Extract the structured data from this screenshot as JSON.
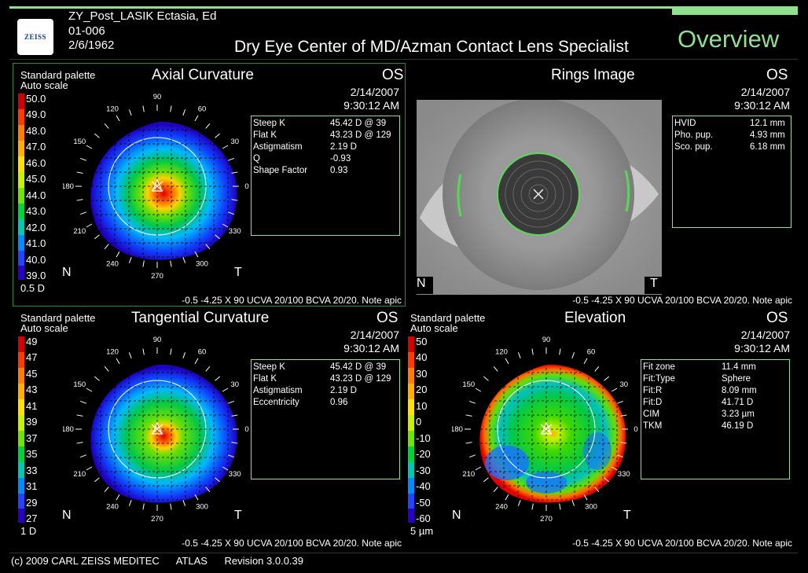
{
  "header": {
    "patient_name": "ZY_Post_LASIK Ectasia, Ed",
    "patient_id": "01-006",
    "dob": "2/6/1962",
    "logo": "ZEISS",
    "title": "Dry Eye Center of MD/Azman Contact Lens Specialist",
    "view": "Overview"
  },
  "axial": {
    "palette": "Standard palette",
    "scale_mode": "Auto scale",
    "title": "Axial Curvature",
    "eye": "OS",
    "date": "2/14/2007",
    "time": "9:30:12 AM",
    "step": "0.5 D",
    "scale": [
      "50.0",
      "49.0",
      "48.0",
      "47.0",
      "46.0",
      "45.0",
      "44.0",
      "43.0",
      "42.0",
      "41.0",
      "40.0",
      "39.0"
    ],
    "info": [
      {
        "k": "Steep K",
        "v": "45.42 D @ 39"
      },
      {
        "k": "Flat K",
        "v": "43.23 D @ 129"
      },
      {
        "k": "Astigmatism",
        "v": "2.19 D"
      },
      {
        "k": "Q",
        "v": "-0.93"
      },
      {
        "k": "Shape Factor",
        "v": "0.93"
      }
    ],
    "rx": "-0.5 -4.25 X 90 UCVA 20/100 BCVA 20/20.  Note apic",
    "nasal": "N",
    "temporal": "T"
  },
  "rings": {
    "title": "Rings Image",
    "eye": "OS",
    "date": "2/14/2007",
    "time": "9:30:12 AM",
    "info": [
      {
        "k": "HVID",
        "v": "12.1 mm"
      },
      {
        "k": "Pho. pup.",
        "v": "4.93 mm"
      },
      {
        "k": "Sco. pup.",
        "v": "6.18 mm"
      }
    ],
    "rx": "-0.5 -4.25 X 90 UCVA 20/100 BCVA 20/20.  Note apic",
    "nasal": "N",
    "temporal": "T"
  },
  "tangential": {
    "palette": "Standard palette",
    "scale_mode": "Auto scale",
    "title": "Tangential Curvature",
    "eye": "OS",
    "date": "2/14/2007",
    "time": "9:30:12 AM",
    "step": "1 D",
    "scale": [
      "49",
      "47",
      "45",
      "43",
      "41",
      "39",
      "37",
      "35",
      "33",
      "31",
      "29",
      "27"
    ],
    "info": [
      {
        "k": "Steep K",
        "v": "45.42 D @ 39"
      },
      {
        "k": "Flat K",
        "v": "43.23 D @ 129"
      },
      {
        "k": "Astigmatism",
        "v": "2.19 D"
      },
      {
        "k": "Eccentricity",
        "v": "0.96"
      }
    ],
    "rx": "-0.5 -4.25 X 90 UCVA 20/100 BCVA 20/20.  Note apic",
    "nasal": "N",
    "temporal": "T"
  },
  "elevation": {
    "palette": "Standard palette",
    "scale_mode": "Auto scale",
    "title": "Elevation",
    "eye": "OS",
    "date": "2/14/2007",
    "time": "9:30:12 AM",
    "step": "5 µm",
    "scale": [
      "50",
      "40",
      "30",
      "20",
      "10",
      "0",
      "-10",
      "-20",
      "-30",
      "-40",
      "-50",
      "-60"
    ],
    "info": [
      {
        "k": "Fit zone",
        "v": "11.4 mm"
      },
      {
        "k": "Fit:Type",
        "v": "Sphere"
      },
      {
        "k": "Fit:R",
        "v": "8.09 mm"
      },
      {
        "k": "Fit:D",
        "v": "41.71 D"
      },
      {
        "k": "CIM",
        "v": "3.23 µm"
      },
      {
        "k": "TKM",
        "v": "46.19 D"
      }
    ],
    "rx": "-0.5 -4.25 X 90 UCVA 20/100 BCVA 20/20.  Note apic",
    "nasal": "N",
    "temporal": "T"
  },
  "angles": [
    "90",
    "60",
    "30",
    "0",
    "330",
    "300",
    "270",
    "240",
    "210",
    "180",
    "150",
    "120"
  ],
  "footer": {
    "copyright": "(c) 2009 CARL ZEISS MEDITEC",
    "product": "ATLAS",
    "version": "Revision  3.0.0.39"
  }
}
